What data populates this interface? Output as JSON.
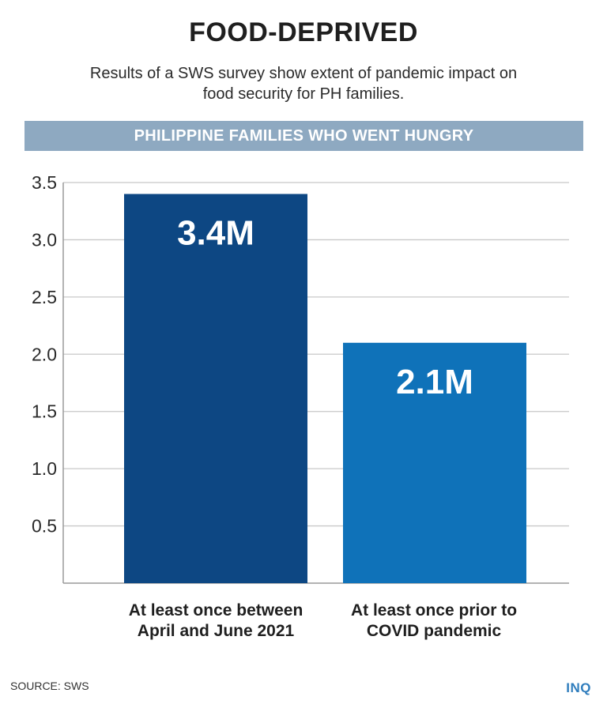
{
  "header": {
    "title": "FOOD-DEPRIVED",
    "subtitle": "Results of a SWS survey show extent of pandemic impact on food security for PH families.",
    "banner": "PHILIPPINE FAMILIES WHO WENT HUNGRY"
  },
  "chart_data": {
    "type": "bar",
    "title": "PHILIPPINE FAMILIES WHO WENT HUNGRY",
    "categories": [
      "At least once between April and June 2021",
      "At least once prior to COVID pandemic"
    ],
    "values": [
      3.4,
      2.1
    ],
    "data_labels": [
      "3.4M",
      "2.1M"
    ],
    "colors": [
      "#0d4783",
      "#0f72b9"
    ],
    "yticks": [
      "0.5",
      "1.0",
      "1.5",
      "2.0",
      "2.5",
      "3.0",
      "3.5"
    ],
    "ylim": [
      0,
      3.5
    ],
    "xlabel": "",
    "ylabel": "",
    "grid": true
  },
  "footer": {
    "source": "SOURCE: SWS",
    "logo": "INQ"
  }
}
